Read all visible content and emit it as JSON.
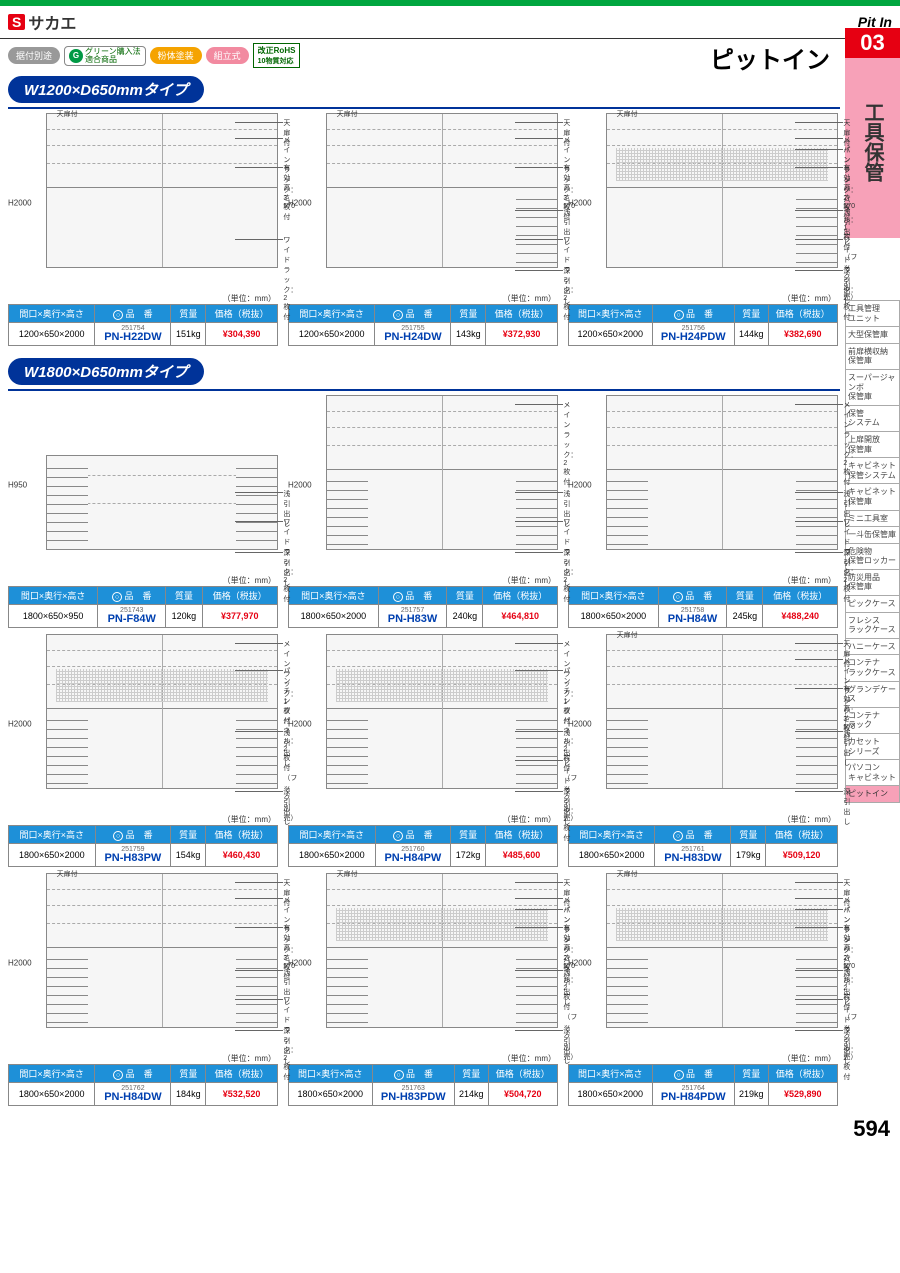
{
  "brand": "サカエ",
  "brand_logo_letter": "S",
  "header_right": "Pit In",
  "title_jp": "ピットイン",
  "page_number": "594",
  "side_tab": {
    "number": "03",
    "label": "工具保管"
  },
  "badges": {
    "b1": {
      "text": "据付別途",
      "bg": "#999999"
    },
    "g_letter": "G",
    "g_text": "グリーン購入法\n適合商品",
    "b2": {
      "text": "粉体塗装",
      "bg": "#f5a300"
    },
    "b3": {
      "text": "組立式",
      "bg": "#f28aa0"
    },
    "rohs_top": "改正RoHS",
    "rohs_bottom": "10物質対応"
  },
  "side_nav": [
    "工具管理\nユニット",
    "大型保管庫",
    "前扉横収納\n保管庫",
    "スーパージャンボ\n保管庫",
    "保管\nシステム",
    "上扉開放\n保管庫",
    "キャビネット\n保管システム",
    "キャビネット\n保管庫",
    "ミニ工具室",
    "一斗缶保管庫",
    "危険物\n保管ロッカー",
    "防災用品\n保管庫",
    "ピックケース",
    "フレシス\nラックケース",
    "ハニーケース",
    "コンテナ\nラックケース",
    "グランデケース",
    "コンテナ\nラック",
    "カセット\nシリーズ",
    "パソコン\nキャビネット",
    "ピットイン"
  ],
  "side_nav_active_index": 20,
  "unit_label": "（単位：mm）",
  "section1_title": "W1200×D650mmタイプ",
  "section2_title": "W1800×D650mmタイプ",
  "spec_headers": {
    "dims": "間口×奥行×高さ",
    "code_prefix": "○",
    "code": "品　番",
    "mass": "質量",
    "price": "価格（税抜）"
  },
  "annotations": {
    "tenbira": "天扉付",
    "main3": "メインラック：3枚付",
    "main2": "メインラック：2枚付",
    "main1": "メインラック：1枚付",
    "wide2": "ワイドラック：2枚付",
    "yuko": "有効高さ\n570",
    "asahiki": "浅引出し",
    "fukahiki": "深引出し",
    "punch1": "パンチングパネル：1枚付\n（フック別売）",
    "punch2": "パンチングパネル：2枚付\n（フック別売）",
    "h2000": "H2000",
    "h950": "H950"
  },
  "rows": [
    [
      {
        "dims": "1200×650×2000",
        "num": "251754",
        "model": "PN-H22DW",
        "mass": "151kg",
        "price": "¥304,390",
        "h": "h2000",
        "anno": [
          "tenbira",
          "main3",
          "yuko",
          "wide2"
        ],
        "style": "tall",
        "drawers": "none"
      },
      {
        "dims": "1200×650×2000",
        "num": "251755",
        "model": "PN-H24DW",
        "mass": "143kg",
        "price": "¥372,930",
        "h": "h2000",
        "anno": [
          "tenbira",
          "main3",
          "yuko",
          "asahiki",
          "wide2",
          "fukahiki"
        ],
        "style": "tall",
        "drawers": "right"
      },
      {
        "dims": "1200×650×2000",
        "num": "251756",
        "model": "PN-H24PDW",
        "mass": "144kg",
        "price": "¥382,690",
        "h": "h2000",
        "anno": [
          "tenbira",
          "main2",
          "punch1",
          "yuko",
          "asahiki",
          "wide2",
          "fukahiki"
        ],
        "style": "tall",
        "drawers": "right",
        "mesh": "upper"
      }
    ],
    [
      {
        "dims": "1800×650×950",
        "num": "251743",
        "model": "PN-F84W",
        "mass": "120kg",
        "price": "¥377,970",
        "h": "h950",
        "anno": [
          "wide2",
          "asahiki",
          "fukahiki"
        ],
        "style": "short",
        "drawers": "both"
      },
      {
        "dims": "1800×650×2000",
        "num": "251757",
        "model": "PN-H83W",
        "mass": "240kg",
        "price": "¥464,810",
        "h": "h2000",
        "anno": [
          "main2",
          "wide2",
          "asahiki",
          "fukahiki"
        ],
        "style": "tall",
        "drawers": "both"
      },
      {
        "dims": "1800×650×2000",
        "num": "251758",
        "model": "PN-H84W",
        "mass": "245kg",
        "price": "¥488,240",
        "h": "h2000",
        "anno": [
          "main2",
          "wide2",
          "asahiki",
          "fukahiki"
        ],
        "style": "tall",
        "drawers": "both"
      }
    ],
    [
      {
        "dims": "1800×650×2000",
        "num": "251759",
        "model": "PN-H83PW",
        "mass": "154kg",
        "price": "¥460,430",
        "h": "h2000",
        "anno": [
          "main1",
          "punch2",
          "asahiki",
          "fukahiki"
        ],
        "style": "tall",
        "drawers": "both",
        "mesh": "upper"
      },
      {
        "dims": "1800×650×2000",
        "num": "251760",
        "model": "PN-H84PW",
        "mass": "172kg",
        "price": "¥485,600",
        "h": "h2000",
        "anno": [
          "main1",
          "punch2",
          "asahiki",
          "wide2",
          "fukahiki"
        ],
        "style": "tall",
        "drawers": "both",
        "mesh": "upper"
      },
      {
        "dims": "1800×650×2000",
        "num": "251761",
        "model": "PN-H83DW",
        "mass": "179kg",
        "price": "¥509,120",
        "h": "h2000",
        "anno": [
          "tenbira",
          "main3",
          "yuko",
          "asahiki",
          "fukahiki"
        ],
        "style": "tall",
        "drawers": "both"
      }
    ],
    [
      {
        "dims": "1800×650×2000",
        "num": "251762",
        "model": "PN-H84DW",
        "mass": "184kg",
        "price": "¥532,520",
        "h": "h2000",
        "anno": [
          "tenbira",
          "main3",
          "yuko",
          "asahiki",
          "wide2",
          "fukahiki"
        ],
        "style": "tall",
        "drawers": "both"
      },
      {
        "dims": "1800×650×2000",
        "num": "251763",
        "model": "PN-H83PDW",
        "mass": "214kg",
        "price": "¥504,720",
        "h": "h2000",
        "anno": [
          "tenbira",
          "main2",
          "punch2",
          "yuko",
          "asahiki",
          "fukahiki"
        ],
        "style": "tall",
        "drawers": "both",
        "mesh": "upper"
      },
      {
        "dims": "1800×650×2000",
        "num": "251764",
        "model": "PN-H84PDW",
        "mass": "219kg",
        "price": "¥529,890",
        "h": "h2000",
        "anno": [
          "tenbira",
          "main2",
          "punch2",
          "yuko",
          "asahiki",
          "wide2",
          "fukahiki"
        ],
        "style": "tall",
        "drawers": "both",
        "mesh": "upper"
      }
    ]
  ]
}
